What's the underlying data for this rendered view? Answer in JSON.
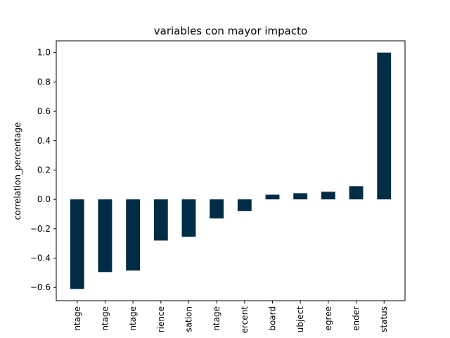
{
  "chart_data": {
    "type": "bar",
    "title": "variables con mayor impacto",
    "xlabel": "",
    "ylabel": "correlation_percentage",
    "categories": [
      "ntage",
      "ntage",
      "ntage",
      "rience",
      "sation",
      "ntage",
      "ercent",
      "board",
      "ubject",
      "egree",
      "ender",
      "status"
    ],
    "values": [
      -0.61,
      -0.495,
      -0.485,
      -0.28,
      -0.255,
      -0.13,
      -0.08,
      0.032,
      0.042,
      0.052,
      0.09,
      1.0
    ],
    "ylim": [
      -0.69,
      1.08
    ],
    "yticks": [
      -0.6,
      -0.4,
      -0.2,
      0.0,
      0.2,
      0.4,
      0.6,
      0.8,
      1.0
    ],
    "ytick_labels": [
      "−0.6",
      "−0.4",
      "−0.2",
      "0.0",
      "0.2",
      "0.4",
      "0.6",
      "0.8",
      "1.0"
    ],
    "bar_color": "#002c45",
    "grid": false,
    "legend": "none"
  }
}
